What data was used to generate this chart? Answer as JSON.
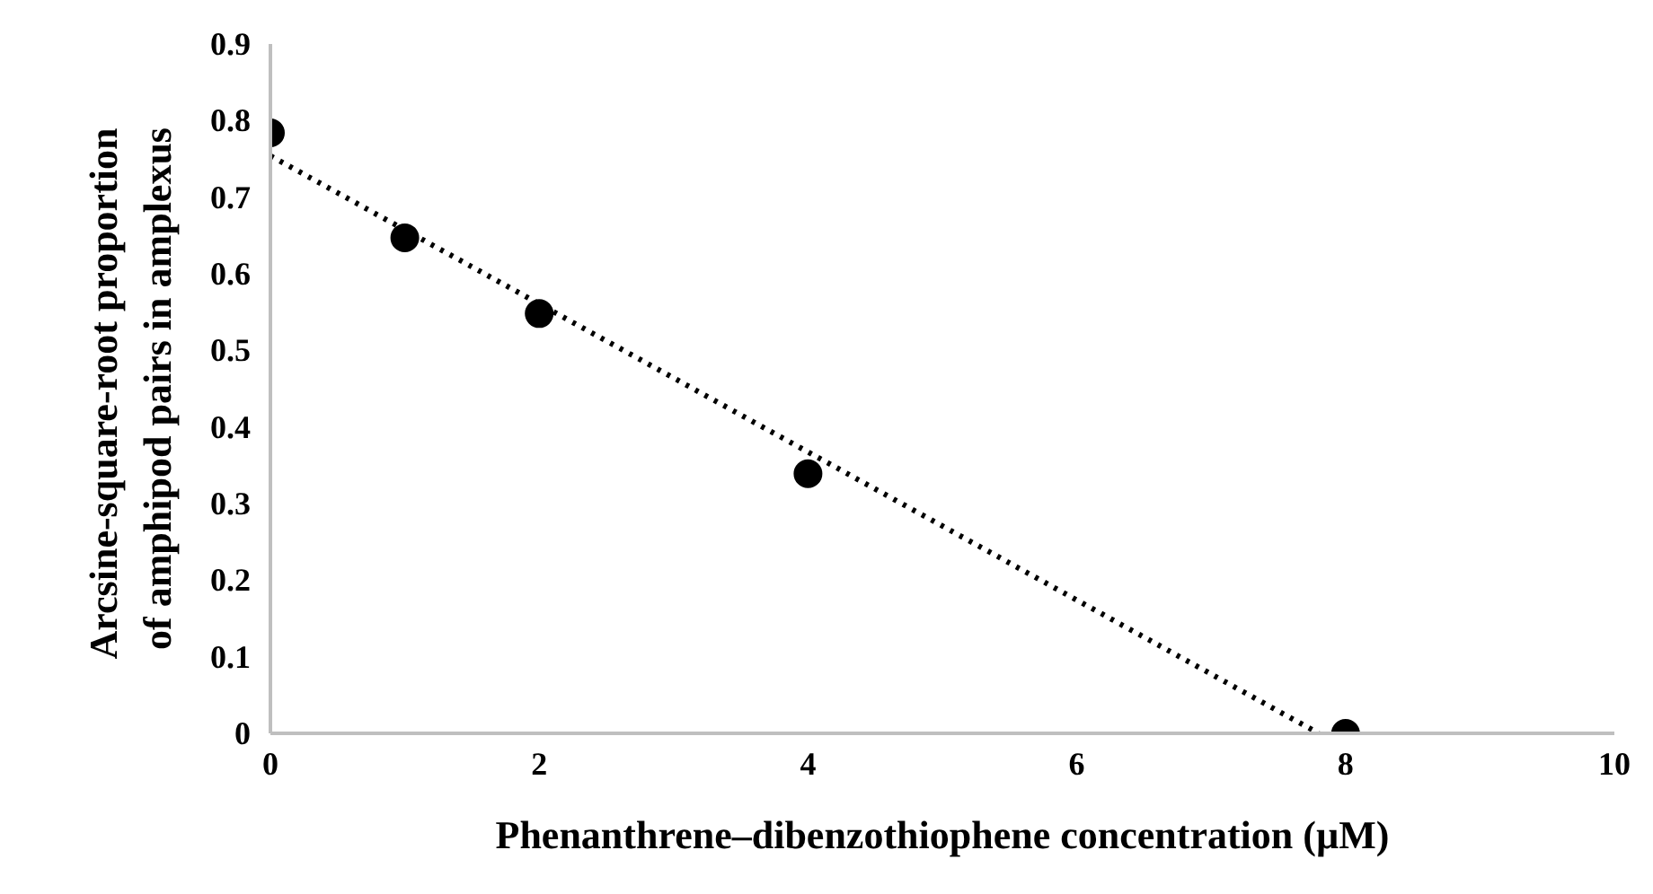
{
  "chart_data": {
    "type": "scatter",
    "xlabel": "Phenanthrene–dibenzothiophene concentration (µM)",
    "ylabel": "Arcsine-square-root  proportion\nof amphipod pairs in amplexus",
    "x": [
      0,
      1,
      2,
      4,
      8
    ],
    "series": [
      {
        "color": "#000000",
        "values": [
          0.784,
          0.647,
          0.548,
          0.339,
          0
        ],
        "marker": "circle"
      },
      {
        "type": "line",
        "color": "#000000",
        "x": [
          0,
          7.8
        ],
        "values": [
          0.754,
          0
        ],
        "line_style": "dotted"
      }
    ],
    "xlim": [
      0,
      10
    ],
    "xticks": [
      0,
      2,
      4,
      6,
      8,
      10
    ],
    "ylim": [
      0,
      0.9
    ],
    "yticks": [
      0,
      0.1,
      0.2,
      0.3,
      0.4,
      0.5,
      0.6,
      0.7,
      0.8,
      0.9
    ],
    "grid": false
  }
}
